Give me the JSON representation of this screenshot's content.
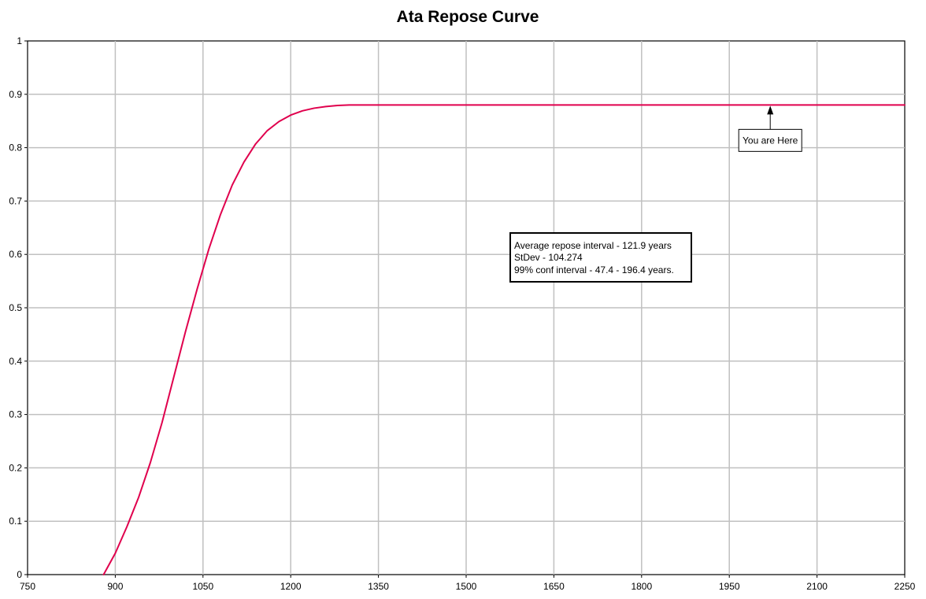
{
  "chart_data": {
    "type": "line",
    "title": "Ata Repose Curve",
    "xlabel": "",
    "ylabel": "",
    "xlim": [
      750,
      2250
    ],
    "ylim": [
      0,
      1
    ],
    "x_ticks": [
      750,
      900,
      1050,
      1200,
      1350,
      1500,
      1650,
      1800,
      1950,
      2100,
      2250
    ],
    "y_ticks": [
      0,
      0.1,
      0.2,
      0.3,
      0.4,
      0.5,
      0.6,
      0.7,
      0.8,
      0.9,
      1
    ],
    "grid": true,
    "series": [
      {
        "color": "#e0004d",
        "x": [
          880,
          900,
          920,
          940,
          960,
          980,
          1000,
          1020,
          1040,
          1060,
          1080,
          1100,
          1120,
          1140,
          1160,
          1180,
          1200,
          1220,
          1240,
          1260,
          1280,
          1300,
          1320,
          1350,
          1400,
          1500,
          1650,
          1800,
          1950,
          2100,
          2250
        ],
        "y": [
          0,
          0.04,
          0.09,
          0.145,
          0.21,
          0.285,
          0.37,
          0.455,
          0.535,
          0.61,
          0.675,
          0.73,
          0.773,
          0.807,
          0.832,
          0.849,
          0.861,
          0.869,
          0.874,
          0.877,
          0.879,
          0.88,
          0.88,
          0.88,
          0.88,
          0.88,
          0.88,
          0.88,
          0.88,
          0.88,
          0.88
        ]
      }
    ],
    "annotations": {
      "stats_box": {
        "lines": [
          "Average repose interval - 121.9 years",
          "StDev - 104.274",
          "99% conf interval - 47.4 - 196.4 years."
        ]
      },
      "marker": {
        "label": "You are Here",
        "x": 2020,
        "y": 0.88
      }
    }
  }
}
